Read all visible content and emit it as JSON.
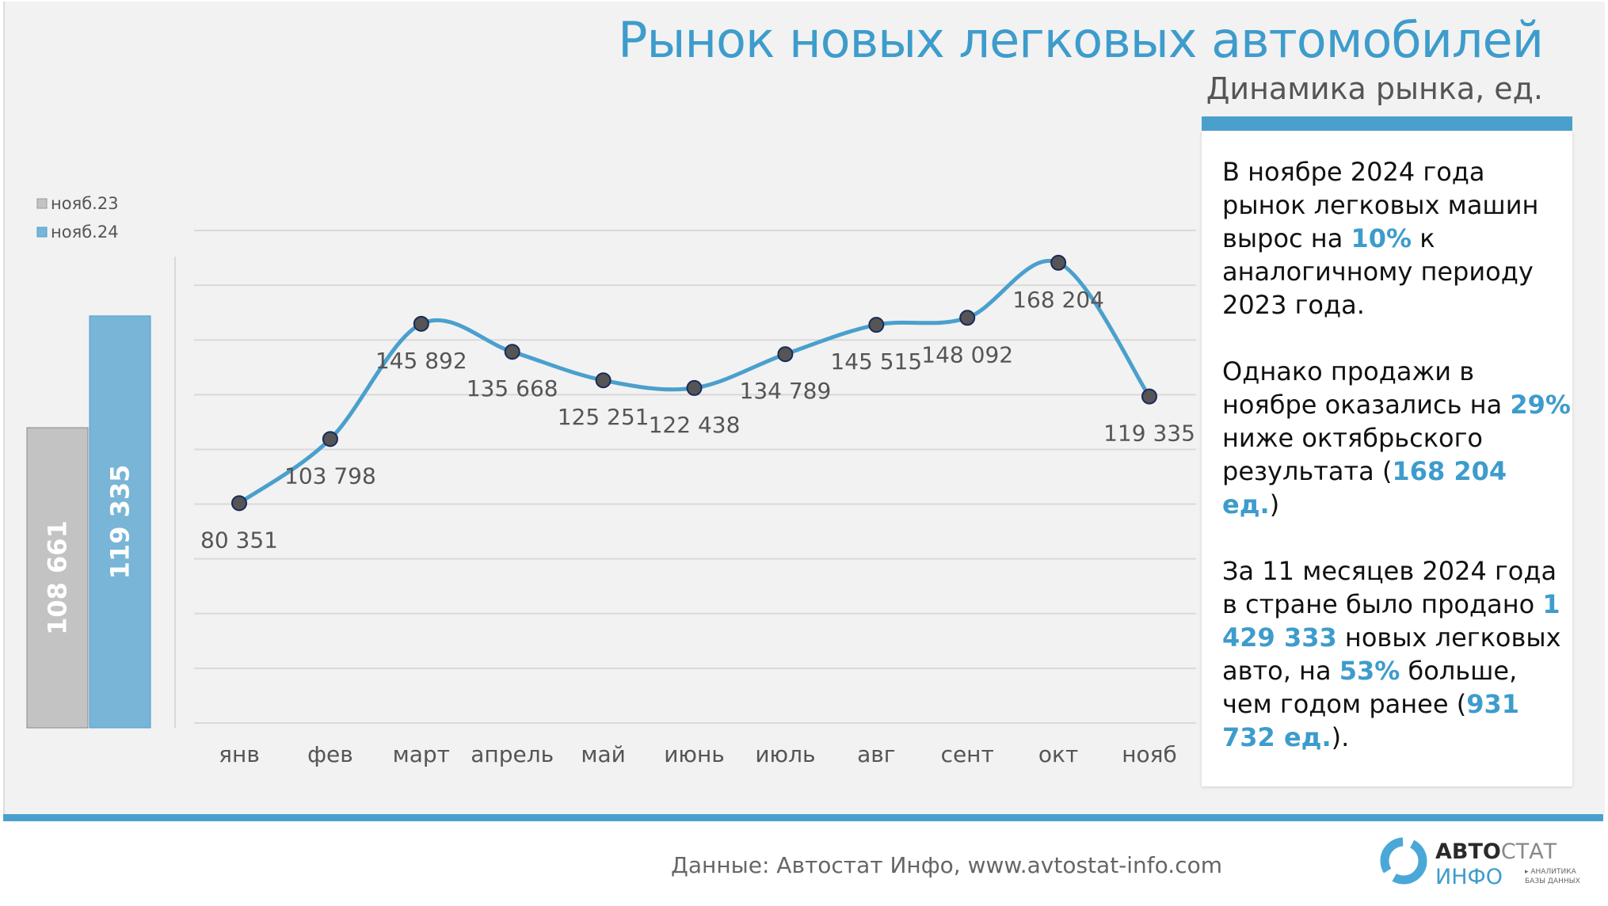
{
  "header": {
    "title": "Рынок новых легковых автомобилей",
    "subtitle": "Динамика рынка, ед."
  },
  "chart_data": [
    {
      "type": "bar",
      "legend": [
        "нояб.23",
        "нояб.24"
      ],
      "legend_placement": "top-left",
      "categories": [
        "нояб.23",
        "нояб.24"
      ],
      "values": [
        108661,
        119335
      ],
      "data_labels": [
        "108 661",
        "119 335"
      ],
      "colors": [
        "#c3c3c3",
        "#79b5d7"
      ],
      "ylim": [
        80000,
        125000
      ]
    },
    {
      "type": "line",
      "categories": [
        "янв",
        "фев",
        "март",
        "апрель",
        "май",
        "июнь",
        "июль",
        "авг",
        "сент",
        "окт",
        "нояб"
      ],
      "values": [
        80351,
        103798,
        145892,
        135668,
        125251,
        122438,
        134789,
        145515,
        148092,
        168204,
        119335
      ],
      "data_labels": [
        "80 351",
        "103 798",
        "145 892",
        "135 668",
        "125 251",
        "122 438",
        "134 789",
        "145 515",
        "148 092",
        "168 204",
        "119 335"
      ],
      "ylim": [
        0,
        180000
      ],
      "grid": true,
      "line_color": "#4aa0cd",
      "marker_color": "#555555"
    }
  ],
  "panel": {
    "p1": [
      "В ноябре 2024 года рынок легковых машин вырос на ",
      "10%",
      " к аналогичному периоду 2023 года."
    ],
    "p2": [
      "Однако продажи в ноябре оказались на ",
      "29%",
      " ниже октябрьского результата (",
      "168 204 ед.",
      ")"
    ],
    "p3": [
      "За 11 месяцев 2024 года в стране было продано ",
      "1 429 333",
      " новых легковых авто, на ",
      "53%",
      " больше, чем годом ранее (",
      "931 732 ед.",
      ")."
    ]
  },
  "footer": {
    "source": "Данные: Автостат Инфо, www.avtostat-info.com"
  },
  "logo": {
    "line1a": "АВТО",
    "line1b": "СТАТ",
    "line2": "ИНФО",
    "tag1": "▸ АНАЛИТИКА",
    "tag2": "БАЗЫ ДАННЫХ"
  }
}
